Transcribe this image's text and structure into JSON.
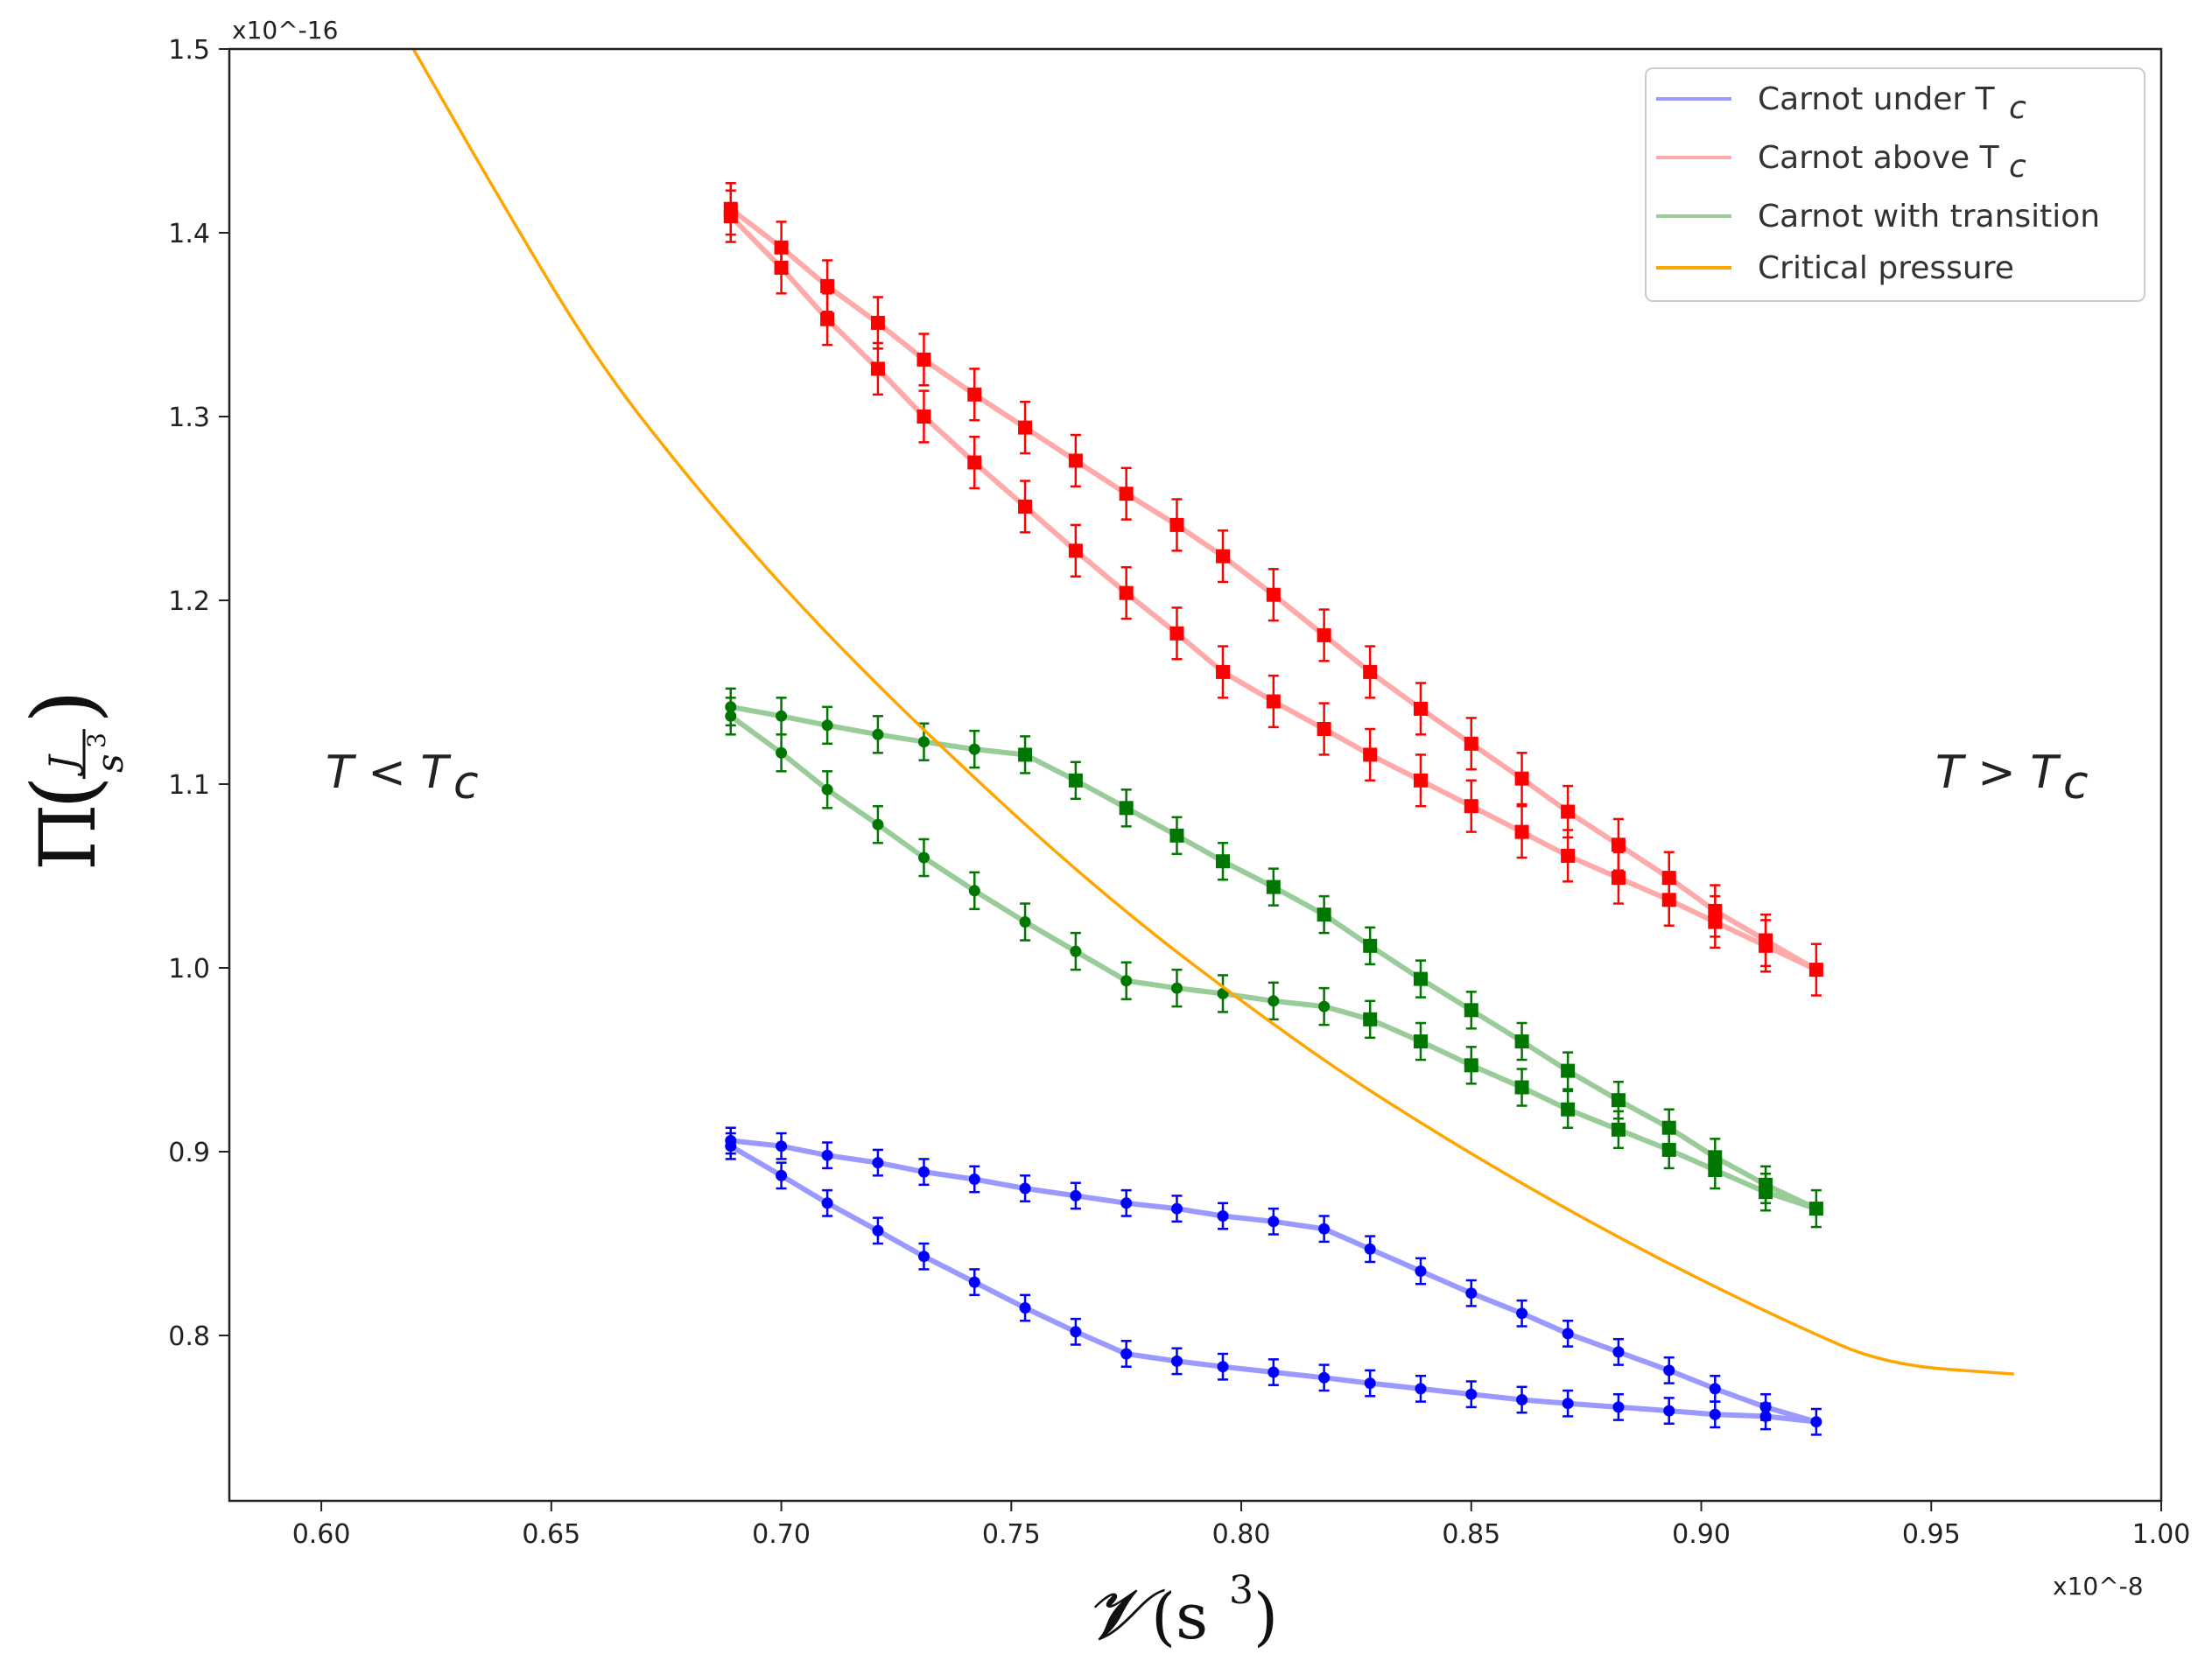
{
  "chart_data": {
    "type": "line",
    "title": "",
    "xlabel": {
      "main": "𝓥",
      "unit_open": "(s",
      "unit_exp": "3",
      "unit_close": ")"
    },
    "ylabel": {
      "main": "Π",
      "frac_num": "J",
      "frac_den": "s",
      "frac_den_exp": "3"
    },
    "x_multiplier": "x10^-8",
    "y_multiplier": "x10^-16",
    "xlim": [
      0.58,
      1.0
    ],
    "ylim": [
      0.71,
      1.5
    ],
    "xticks": [
      0.6,
      0.65,
      0.7,
      0.75,
      0.8,
      0.85,
      0.9,
      0.95,
      1.0
    ],
    "xtick_labels": [
      "0.60",
      "0.65",
      "0.70",
      "0.75",
      "0.80",
      "0.85",
      "0.90",
      "0.95",
      "1.00"
    ],
    "yticks": [
      0.8,
      0.9,
      1.0,
      1.1,
      1.2,
      1.3,
      1.4,
      1.5
    ],
    "ytick_labels": [
      "0.8",
      "0.9",
      "1.0",
      "1.1",
      "1.2",
      "1.3",
      "1.4",
      "1.5"
    ],
    "legend_position": "top-right",
    "annotations": [
      {
        "text_main": "T < T",
        "text_sub": "c",
        "x": 0.615,
        "y": 1.105
      },
      {
        "text_main": "T > T",
        "text_sub": "c",
        "x": 0.977,
        "y": 1.105
      }
    ],
    "series": [
      {
        "name_main": "Carnot under T",
        "name_sub": "c",
        "color": "#0000ff",
        "line_color": "#9999ff",
        "marker": "circle",
        "points": [
          [
            0.689,
            0.906
          ],
          [
            0.7,
            0.903
          ],
          [
            0.71,
            0.898
          ],
          [
            0.721,
            0.894
          ],
          [
            0.731,
            0.889
          ],
          [
            0.742,
            0.885
          ],
          [
            0.753,
            0.88
          ],
          [
            0.764,
            0.876
          ],
          [
            0.775,
            0.872
          ],
          [
            0.786,
            0.869
          ],
          [
            0.796,
            0.865
          ],
          [
            0.807,
            0.862
          ],
          [
            0.818,
            0.858
          ],
          [
            0.828,
            0.847
          ],
          [
            0.839,
            0.835
          ],
          [
            0.85,
            0.823
          ],
          [
            0.861,
            0.812
          ],
          [
            0.871,
            0.801
          ],
          [
            0.882,
            0.791
          ],
          [
            0.893,
            0.781
          ],
          [
            0.903,
            0.771
          ],
          [
            0.914,
            0.761
          ],
          [
            0.925,
            0.753
          ],
          [
            0.914,
            0.756
          ],
          [
            0.903,
            0.757
          ],
          [
            0.893,
            0.759
          ],
          [
            0.882,
            0.761
          ],
          [
            0.871,
            0.763
          ],
          [
            0.861,
            0.765
          ],
          [
            0.85,
            0.768
          ],
          [
            0.839,
            0.771
          ],
          [
            0.828,
            0.774
          ],
          [
            0.818,
            0.777
          ],
          [
            0.807,
            0.78
          ],
          [
            0.796,
            0.783
          ],
          [
            0.786,
            0.786
          ],
          [
            0.775,
            0.79
          ],
          [
            0.764,
            0.802
          ],
          [
            0.753,
            0.815
          ],
          [
            0.742,
            0.829
          ],
          [
            0.731,
            0.843
          ],
          [
            0.721,
            0.857
          ],
          [
            0.71,
            0.872
          ],
          [
            0.7,
            0.887
          ],
          [
            0.689,
            0.903
          ]
        ],
        "err": 0.007
      },
      {
        "name_main": "Carnot above T",
        "name_sub": "c",
        "color": "#ff0000",
        "line_color": "#ffaaaa",
        "marker": "square",
        "points": [
          [
            0.689,
            1.413
          ],
          [
            0.7,
            1.392
          ],
          [
            0.71,
            1.371
          ],
          [
            0.721,
            1.351
          ],
          [
            0.731,
            1.331
          ],
          [
            0.742,
            1.312
          ],
          [
            0.753,
            1.294
          ],
          [
            0.764,
            1.276
          ],
          [
            0.775,
            1.258
          ],
          [
            0.786,
            1.241
          ],
          [
            0.796,
            1.224
          ],
          [
            0.807,
            1.203
          ],
          [
            0.818,
            1.181
          ],
          [
            0.828,
            1.161
          ],
          [
            0.839,
            1.141
          ],
          [
            0.85,
            1.122
          ],
          [
            0.861,
            1.103
          ],
          [
            0.871,
            1.085
          ],
          [
            0.882,
            1.067
          ],
          [
            0.893,
            1.049
          ],
          [
            0.903,
            1.031
          ],
          [
            0.914,
            1.015
          ],
          [
            0.925,
            0.999
          ],
          [
            0.914,
            1.012
          ],
          [
            0.903,
            1.025
          ],
          [
            0.893,
            1.037
          ],
          [
            0.882,
            1.049
          ],
          [
            0.871,
            1.061
          ],
          [
            0.861,
            1.074
          ],
          [
            0.85,
            1.088
          ],
          [
            0.839,
            1.102
          ],
          [
            0.828,
            1.116
          ],
          [
            0.818,
            1.13
          ],
          [
            0.807,
            1.145
          ],
          [
            0.796,
            1.161
          ],
          [
            0.786,
            1.182
          ],
          [
            0.775,
            1.204
          ],
          [
            0.764,
            1.227
          ],
          [
            0.753,
            1.251
          ],
          [
            0.742,
            1.275
          ],
          [
            0.731,
            1.3
          ],
          [
            0.721,
            1.326
          ],
          [
            0.71,
            1.353
          ],
          [
            0.7,
            1.381
          ],
          [
            0.689,
            1.409
          ]
        ],
        "err": 0.014
      },
      {
        "name_main": "Carnot with transition",
        "name_sub": "",
        "color": "#007700",
        "line_color": "#99cc99",
        "marker": "mixed",
        "points": [
          [
            0.689,
            1.142
          ],
          [
            0.7,
            1.137
          ],
          [
            0.71,
            1.132
          ],
          [
            0.721,
            1.127
          ],
          [
            0.731,
            1.123
          ],
          [
            0.742,
            1.119
          ],
          [
            0.753,
            1.116
          ],
          [
            0.764,
            1.102
          ],
          [
            0.775,
            1.087
          ],
          [
            0.786,
            1.072
          ],
          [
            0.796,
            1.058
          ],
          [
            0.807,
            1.044
          ],
          [
            0.818,
            1.029
          ],
          [
            0.828,
            1.012
          ],
          [
            0.839,
            0.994
          ],
          [
            0.85,
            0.977
          ],
          [
            0.861,
            0.96
          ],
          [
            0.871,
            0.944
          ],
          [
            0.882,
            0.928
          ],
          [
            0.893,
            0.913
          ],
          [
            0.903,
            0.897
          ],
          [
            0.914,
            0.882
          ],
          [
            0.925,
            0.869
          ],
          [
            0.914,
            0.878
          ],
          [
            0.903,
            0.89
          ],
          [
            0.893,
            0.901
          ],
          [
            0.882,
            0.912
          ],
          [
            0.871,
            0.923
          ],
          [
            0.861,
            0.935
          ],
          [
            0.85,
            0.947
          ],
          [
            0.839,
            0.96
          ],
          [
            0.828,
            0.972
          ],
          [
            0.818,
            0.979
          ],
          [
            0.807,
            0.982
          ],
          [
            0.796,
            0.986
          ],
          [
            0.786,
            0.989
          ],
          [
            0.775,
            0.993
          ],
          [
            0.764,
            1.009
          ],
          [
            0.753,
            1.025
          ],
          [
            0.742,
            1.042
          ],
          [
            0.731,
            1.06
          ],
          [
            0.721,
            1.078
          ],
          [
            0.71,
            1.097
          ],
          [
            0.7,
            1.117
          ],
          [
            0.689,
            1.137
          ]
        ],
        "err": 0.01
      },
      {
        "name_main": "Critical pressure",
        "name_sub": "",
        "color": "#ffa500",
        "marker": "none",
        "curve": {
          "x_start": 0.62,
          "x_end": 0.968,
          "points": [
            [
              0.62,
              1.5
            ],
            [
              0.64,
              1.413
            ],
            [
              0.66,
              1.33
            ],
            [
              0.68,
              1.266
            ],
            [
              0.7,
              1.208
            ],
            [
              0.72,
              1.156
            ],
            [
              0.74,
              1.108
            ],
            [
              0.76,
              1.062
            ],
            [
              0.78,
              1.02
            ],
            [
              0.8,
              0.982
            ],
            [
              0.82,
              0.946
            ],
            [
              0.84,
              0.914
            ],
            [
              0.86,
              0.884
            ],
            [
              0.88,
              0.856
            ],
            [
              0.9,
              0.83
            ],
            [
              0.92,
              0.806
            ],
            [
              0.94,
              0.784
            ],
            [
              0.968,
              0.779
            ]
          ]
        }
      }
    ]
  }
}
